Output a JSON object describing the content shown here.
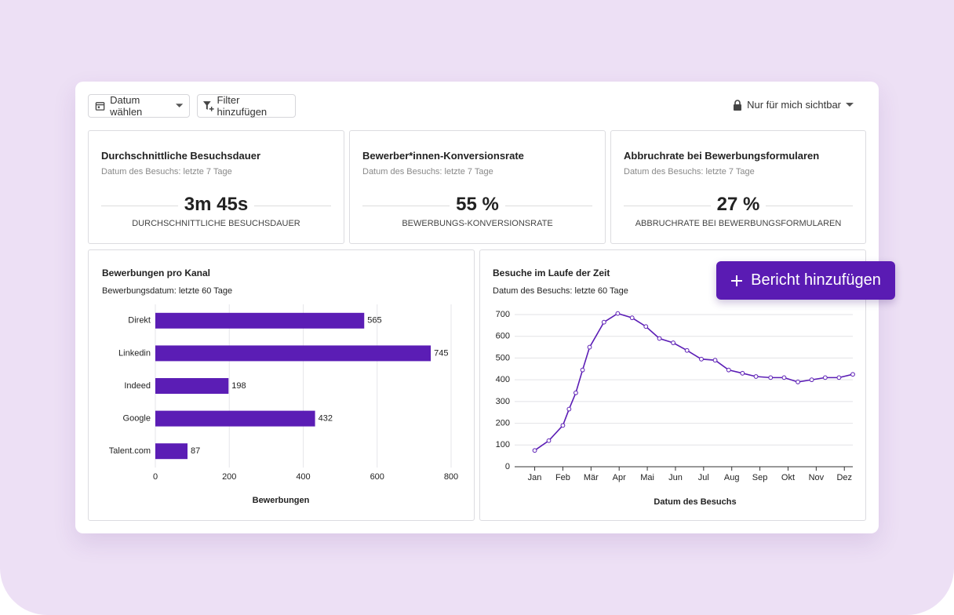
{
  "toolbar": {
    "date_button": "Datum wählen",
    "filter_button": "Filter hinzufügen",
    "visibility": "Nur für mich sichtbar"
  },
  "kpis": [
    {
      "title": "Durchschnittliche Besuchsdauer",
      "subtitle": "Datum des Besuchs: letzte 7 Tage",
      "value": "3m 45s",
      "label": "DURCHSCHNITTLICHE BESUCHSDAUER"
    },
    {
      "title": "Bewerber*innen-Konversionsrate",
      "subtitle": "Datum des Besuchs: letzte 7 Tage",
      "value": "55 %",
      "label": "BEWERBUNGS-KONVERSIONSRATE"
    },
    {
      "title": "Abbruchrate bei Bewerbungsformularen",
      "subtitle": "Datum des Besuchs: letzte 7 Tage",
      "value": "27 %",
      "label": "ABBRUCHRATE BEI BEWERBUNGSFORMULAREN"
    }
  ],
  "add_report_button": "Bericht hinzufügen",
  "chart_data": [
    {
      "type": "bar",
      "orientation": "horizontal",
      "title": "Bewerbungen pro Kanal",
      "subtitle": "Bewerbungsdatum: letzte 60 Tage",
      "x_label": "Bewerbungen",
      "categories": [
        "Direkt",
        "Linkedin",
        "Indeed",
        "Google",
        "Talent.com"
      ],
      "values": [
        565,
        745,
        198,
        432,
        87
      ],
      "color": "#5b1db5",
      "xlim": [
        0,
        800
      ],
      "xticks": [
        0,
        200,
        400,
        600,
        800
      ],
      "grid": true,
      "data_labels": true
    },
    {
      "type": "line",
      "title": "Besuche im Laufe der Zeit",
      "subtitle": "Datum des Besuchs: letzte 60 Tage",
      "x_label": "Datum des Besuchs",
      "x": [
        0,
        0.5,
        1.0,
        1.22,
        1.46,
        1.7,
        1.95,
        2.46,
        2.95,
        3.46,
        3.95,
        4.43,
        4.92,
        5.41,
        5.92,
        6.41,
        6.89,
        7.38,
        7.86,
        8.38,
        8.86,
        9.35,
        9.84,
        10.32,
        10.81,
        11.3
      ],
      "values": [
        75,
        120,
        190,
        265,
        340,
        445,
        550,
        665,
        705,
        685,
        645,
        590,
        570,
        535,
        495,
        490,
        445,
        430,
        415,
        410,
        410,
        390,
        400,
        410,
        410,
        425
      ],
      "color": "#5b1db5",
      "xlim": [
        -0.35,
        11.3
      ],
      "xticks": [
        {
          "value": 0,
          "label": "Jan"
        },
        {
          "value": 1,
          "label": "Feb"
        },
        {
          "value": 2,
          "label": "Mär"
        },
        {
          "value": 3,
          "label": "Apr"
        },
        {
          "value": 4,
          "label": "Mai"
        },
        {
          "value": 5,
          "label": "Jun"
        },
        {
          "value": 6,
          "label": "Jul"
        },
        {
          "value": 7,
          "label": "Aug"
        },
        {
          "value": 8,
          "label": "Sep"
        },
        {
          "value": 9,
          "label": "Okt"
        },
        {
          "value": 10,
          "label": "Nov"
        },
        {
          "value": 11,
          "label": "Dez"
        }
      ],
      "ylim": [
        0,
        700
      ],
      "yticks": [
        0,
        100,
        200,
        300,
        400,
        500,
        600,
        700
      ],
      "grid": true
    }
  ]
}
